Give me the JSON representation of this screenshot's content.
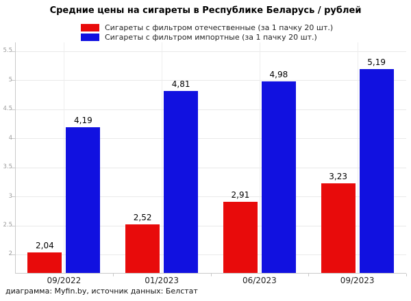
{
  "chart_data": {
    "type": "bar",
    "title": "Средние цены на сигареты в Республике Беларусь / рублей",
    "categories": [
      "09/2022",
      "01/2023",
      "06/2023",
      "09/2023"
    ],
    "series": [
      {
        "name": "Сигареты с фильтром отечественные (за 1 пачку 20 шт.)",
        "color": "#e80b0b",
        "values": [
          2.04,
          2.52,
          2.91,
          3.23
        ],
        "value_labels": [
          "2,04",
          "2,52",
          "2,91",
          "3,23"
        ]
      },
      {
        "name": "Сигареты с фильтром импортные (за 1 пачку 20 шт.)",
        "color": "#1111e0",
        "values": [
          4.19,
          4.81,
          4.98,
          5.19
        ],
        "value_labels": [
          "4,19",
          "4,81",
          "4,98",
          "5,19"
        ]
      }
    ],
    "y_axis": {
      "min": 1.67,
      "max": 5.65,
      "ticks": [
        2,
        2.5,
        3,
        3.5,
        4,
        4.5,
        5,
        5.5
      ],
      "tick_labels": [
        "2",
        "2.5",
        "3",
        "3.5",
        "4",
        "4.5",
        "5",
        "5.5"
      ]
    },
    "grid": true,
    "legend_position": "top"
  },
  "footer": {
    "text": "диаграмма: Myfin.by, источник данных: Белстат"
  }
}
